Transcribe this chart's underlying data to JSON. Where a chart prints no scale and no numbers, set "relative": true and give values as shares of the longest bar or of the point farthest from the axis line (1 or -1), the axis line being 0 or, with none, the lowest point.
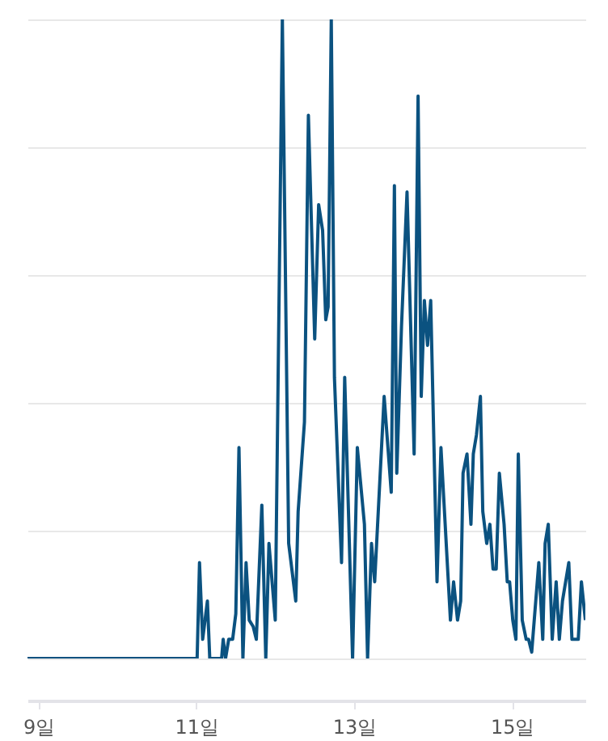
{
  "chart_data": {
    "type": "line",
    "relative": true,
    "grid": "y",
    "line_style": "solid",
    "xlim": [
      8.86,
      15.93
    ],
    "xticks": [
      {
        "value": 9,
        "label": "9일"
      },
      {
        "value": 11,
        "label": "11일"
      },
      {
        "value": 13,
        "label": "13일"
      },
      {
        "value": 15,
        "label": "15일"
      }
    ],
    "series": [
      {
        "color": "#0b5280",
        "x": [
          8.86,
          11.01,
          11.04,
          11.08,
          11.14,
          11.17,
          11.32,
          11.34,
          11.37,
          11.41,
          11.46,
          11.5,
          11.54,
          11.59,
          11.63,
          11.67,
          11.72,
          11.76,
          11.83,
          11.88,
          11.92,
          12.0,
          12.09,
          12.17,
          12.26,
          12.29,
          12.37,
          12.42,
          12.5,
          12.55,
          12.6,
          12.64,
          12.67,
          12.71,
          12.75,
          12.84,
          12.88,
          12.98,
          13.04,
          13.13,
          13.17,
          13.22,
          13.26,
          13.38,
          13.47,
          13.51,
          13.54,
          13.6,
          13.67,
          13.76,
          13.81,
          13.85,
          13.89,
          13.93,
          13.97,
          14.05,
          14.1,
          14.22,
          14.26,
          14.31,
          14.35,
          14.38,
          14.43,
          14.48,
          14.51,
          14.55,
          14.6,
          14.63,
          14.68,
          14.72,
          14.76,
          14.8,
          14.84,
          14.9,
          14.94,
          14.97,
          15.01,
          15.05,
          15.08,
          15.13,
          15.18,
          15.21,
          15.25,
          15.34,
          15.39,
          15.42,
          15.46,
          15.51,
          15.56,
          15.6,
          15.64,
          15.72,
          15.76,
          15.84,
          15.88,
          15.93
        ],
        "values": [
          0,
          0,
          0.15,
          0.03,
          0.09,
          0,
          0,
          0.03,
          0,
          0.03,
          0.03,
          0.07,
          0.33,
          0,
          0.15,
          0.06,
          0.05,
          0.03,
          0.24,
          0,
          0.18,
          0.06,
          1,
          0.18,
          0.09,
          0.23,
          0.37,
          0.85,
          0.5,
          0.71,
          0.67,
          0.53,
          0.55,
          1,
          0.44,
          0.15,
          0.44,
          0,
          0.33,
          0.21,
          0,
          0.18,
          0.12,
          0.41,
          0.26,
          0.74,
          0.29,
          0.52,
          0.73,
          0.32,
          0.88,
          0.41,
          0.56,
          0.49,
          0.56,
          0.12,
          0.33,
          0.06,
          0.12,
          0.06,
          0.09,
          0.29,
          0.32,
          0.21,
          0.32,
          0.35,
          0.41,
          0.23,
          0.18,
          0.21,
          0.14,
          0.14,
          0.29,
          0.21,
          0.12,
          0.12,
          0.06,
          0.03,
          0.32,
          0.06,
          0.03,
          0.03,
          0.01,
          0.15,
          0.03,
          0.18,
          0.21,
          0.03,
          0.12,
          0.03,
          0.09,
          0.15,
          0.03,
          0.03,
          0.12,
          0.06
        ]
      }
    ]
  }
}
